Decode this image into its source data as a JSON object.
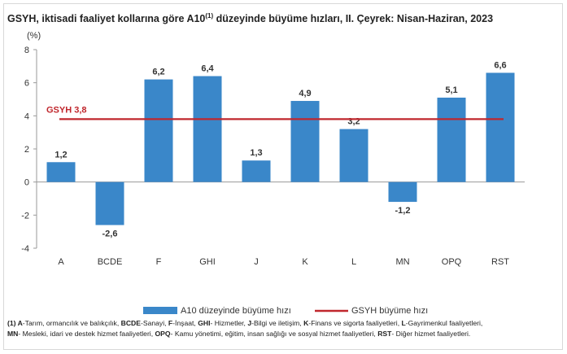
{
  "title": {
    "main": "GSYH, iktisadi faaliyet kollarına göre A10",
    "sup": "(1)",
    "rest": " düzeyinde büyüme hızları, II. Çeyrek: Nisan-Haziran, 2023"
  },
  "chart_data": {
    "type": "bar",
    "categories": [
      "A",
      "BCDE",
      "F",
      "GHI",
      "J",
      "K",
      "L",
      "MN",
      "OPQ",
      "RST"
    ],
    "series": [
      {
        "name": "A10 düzeyinde büyüme hızı",
        "values": [
          1.2,
          -2.6,
          6.2,
          6.4,
          1.3,
          4.9,
          3.2,
          -1.2,
          5.1,
          6.6
        ],
        "labels": [
          "1,2",
          "-2,6",
          "6,2",
          "6,4",
          "1,3",
          "4,9",
          "3,2",
          "-1,2",
          "5,1",
          "6,6"
        ],
        "color": "#3a87c9"
      },
      {
        "name": "GSYH büyüme hızı",
        "value": 3.8,
        "color": "#c0272d",
        "annotation": "GSYH 3,8"
      }
    ],
    "ylabel": "(%)",
    "ylim": [
      -4,
      8
    ],
    "yticks": [
      -4,
      -2,
      0,
      2,
      4,
      6,
      8
    ],
    "grid": false,
    "legend": "bottom"
  },
  "footnote": {
    "line1": [
      {
        "t": "(1) A",
        "b": true
      },
      {
        "t": "-Tarım, ormancılık ve balıkçılık, "
      },
      {
        "t": "BCDE",
        "b": true
      },
      {
        "t": "-Sanayi, "
      },
      {
        "t": "F",
        "b": true
      },
      {
        "t": "-İnşaat, "
      },
      {
        "t": "GHI",
        "b": true
      },
      {
        "t": "- Hizmetler, "
      },
      {
        "t": "J",
        "b": true
      },
      {
        "t": "-Bilgi ve iletişim, "
      },
      {
        "t": "K",
        "b": true
      },
      {
        "t": "-Finans ve sigorta faaliyetleri, "
      },
      {
        "t": "L",
        "b": true
      },
      {
        "t": "-Gayrimenkul faaliyetleri,"
      }
    ],
    "line2": [
      {
        "t": "MN",
        "b": true
      },
      {
        "t": "- Mesleki, idari ve destek hizmet faaliyetleri, "
      },
      {
        "t": "OPQ",
        "b": true
      },
      {
        "t": "- Kamu yönetimi, eğitim, insan sağlığı ve sosyal hizmet faaliyetleri, "
      },
      {
        "t": "RST",
        "b": true
      },
      {
        "t": "- Diğer hizmet faaliyetleri."
      }
    ]
  }
}
